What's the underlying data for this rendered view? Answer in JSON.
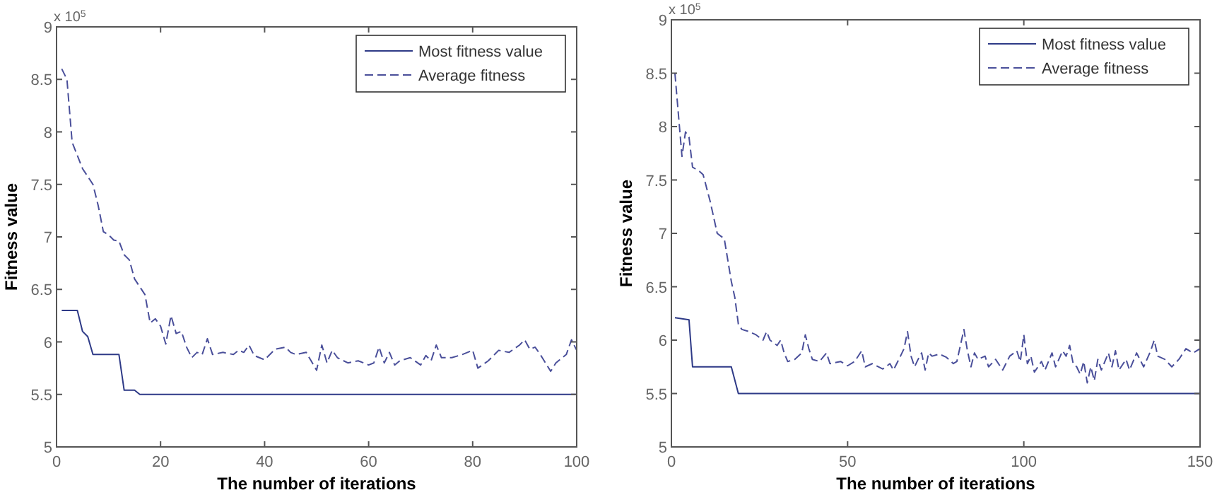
{
  "chart_data": [
    {
      "type": "line",
      "xlabel": "The number of iterations",
      "ylabel": "Fitness value",
      "annotations": [
        "x 10$^{5}$"
      ],
      "xlim": [
        0,
        100
      ],
      "xticks": [
        0,
        20,
        40,
        60,
        80,
        100
      ],
      "ylim": [
        5,
        9
      ],
      "yticks": [
        5,
        5.5,
        6,
        6.5,
        7,
        7.5,
        8,
        8.5,
        9
      ],
      "grid": false,
      "legend": "top right",
      "series": [
        {
          "name": "Most fitness value",
          "color": "#2e3a87",
          "line_style": "solid",
          "x": [
            1,
            4,
            5,
            6,
            7,
            12,
            13,
            15,
            16,
            100
          ],
          "values": [
            6.3,
            6.3,
            6.1,
            6.05,
            5.88,
            5.88,
            5.54,
            5.54,
            5.5,
            5.5
          ]
        },
        {
          "name": "Average fitness",
          "color": "#4a4f9a",
          "line_style": "dashed",
          "x": [
            1,
            2,
            3,
            5,
            7,
            8,
            9,
            10,
            11,
            12,
            13,
            14,
            15,
            17,
            18,
            19,
            20,
            21,
            22,
            23,
            24,
            25,
            26,
            27,
            28,
            29,
            30,
            32,
            34,
            35,
            36,
            37,
            38,
            40,
            42,
            44,
            45,
            46,
            48,
            50,
            51,
            52,
            53,
            54,
            56,
            58,
            60,
            61,
            62,
            63,
            64,
            65,
            66,
            68,
            70,
            71,
            72,
            73,
            74,
            76,
            78,
            80,
            81,
            83,
            85,
            87,
            89,
            90,
            91,
            92,
            93,
            95,
            96,
            98,
            99,
            100
          ],
          "values": [
            8.6,
            8.5,
            7.9,
            7.65,
            7.5,
            7.3,
            7.05,
            7.02,
            6.97,
            6.96,
            6.83,
            6.78,
            6.6,
            6.45,
            6.18,
            6.22,
            6.15,
            5.98,
            6.25,
            6.08,
            6.1,
            5.95,
            5.85,
            5.9,
            5.88,
            6.03,
            5.88,
            5.9,
            5.88,
            5.92,
            5.9,
            5.97,
            5.87,
            5.83,
            5.93,
            5.95,
            5.9,
            5.88,
            5.9,
            5.73,
            5.97,
            5.8,
            5.92,
            5.85,
            5.8,
            5.82,
            5.78,
            5.8,
            5.95,
            5.8,
            5.9,
            5.78,
            5.82,
            5.85,
            5.78,
            5.87,
            5.82,
            5.97,
            5.85,
            5.85,
            5.88,
            5.92,
            5.75,
            5.82,
            5.92,
            5.9,
            5.97,
            6.02,
            5.93,
            5.95,
            5.88,
            5.72,
            5.8,
            5.88,
            6.02,
            5.92
          ]
        }
      ]
    },
    {
      "type": "line",
      "xlabel": "The number of iterations",
      "ylabel": "Fitness value",
      "annotations": [
        "x 10$^{5}$"
      ],
      "xlim": [
        0,
        150
      ],
      "xticks": [
        0,
        50,
        100,
        150
      ],
      "ylim": [
        5,
        9
      ],
      "yticks": [
        5,
        5.5,
        6,
        6.5,
        7,
        7.5,
        8,
        8.5,
        9
      ],
      "grid": false,
      "legend": "top right",
      "series": [
        {
          "name": "Most fitness value",
          "color": "#2e3a87",
          "line_style": "solid",
          "x": [
            1,
            5,
            6,
            17,
            19,
            150
          ],
          "values": [
            6.21,
            6.19,
            5.75,
            5.75,
            5.5,
            5.5
          ]
        },
        {
          "name": "Average fitness",
          "color": "#4a4f9a",
          "line_style": "dashed",
          "x": [
            1,
            3,
            4,
            5,
            6,
            8,
            9,
            11,
            13,
            15,
            17,
            18,
            19,
            20,
            22,
            24,
            26,
            27,
            28,
            30,
            31,
            32,
            33,
            35,
            37,
            38,
            39,
            40,
            42,
            44,
            45,
            48,
            50,
            52,
            54,
            55,
            57,
            60,
            62,
            63,
            65,
            66,
            67,
            68,
            69,
            70,
            71,
            72,
            73,
            74,
            76,
            78,
            80,
            81,
            82,
            83,
            84,
            85,
            86,
            87,
            89,
            90,
            92,
            94,
            96,
            98,
            99,
            100,
            101,
            102,
            103,
            105,
            106,
            108,
            109,
            111,
            112,
            113,
            114,
            115,
            116,
            117,
            118,
            119,
            120,
            121,
            122,
            124,
            125,
            126,
            127,
            129,
            130,
            132,
            134,
            136,
            137,
            138,
            140,
            142,
            144,
            146,
            148,
            150
          ],
          "values": [
            8.5,
            7.72,
            7.95,
            7.9,
            7.62,
            7.58,
            7.55,
            7.3,
            7.0,
            6.95,
            6.55,
            6.4,
            6.15,
            6.1,
            6.08,
            6.05,
            6.0,
            6.08,
            6.0,
            5.95,
            6.0,
            5.88,
            5.8,
            5.82,
            5.88,
            6.05,
            5.92,
            5.82,
            5.8,
            5.88,
            5.78,
            5.8,
            5.76,
            5.8,
            5.9,
            5.75,
            5.78,
            5.73,
            5.78,
            5.72,
            5.85,
            5.92,
            6.08,
            5.85,
            5.75,
            5.82,
            5.88,
            5.72,
            5.88,
            5.85,
            5.87,
            5.84,
            5.78,
            5.8,
            5.95,
            6.1,
            5.9,
            5.75,
            5.88,
            5.82,
            5.85,
            5.75,
            5.82,
            5.72,
            5.85,
            5.9,
            5.8,
            6.05,
            5.78,
            5.85,
            5.7,
            5.8,
            5.72,
            5.88,
            5.75,
            5.9,
            5.85,
            5.95,
            5.78,
            5.75,
            5.68,
            5.8,
            5.6,
            5.75,
            5.62,
            5.82,
            5.72,
            5.88,
            5.75,
            5.9,
            5.72,
            5.82,
            5.72,
            5.88,
            5.75,
            5.9,
            6.0,
            5.85,
            5.82,
            5.75,
            5.82,
            5.92,
            5.88,
            5.92
          ]
        }
      ]
    }
  ]
}
